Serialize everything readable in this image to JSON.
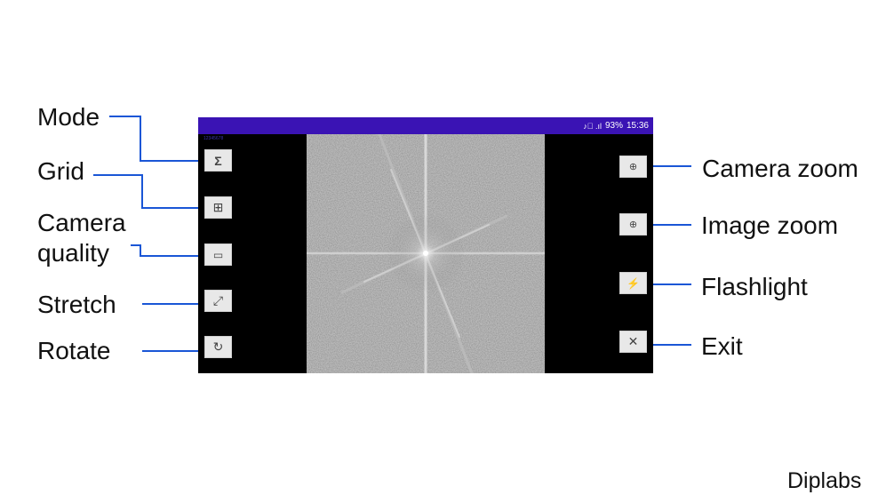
{
  "status_bar": {
    "signal": "♪⃠ .ıl",
    "battery": "93%",
    "time": "15:36"
  },
  "preview_tag": "12345678",
  "left_labels": {
    "mode": "Mode",
    "grid": "Grid",
    "camera_quality_line1": "Camera",
    "camera_quality_line2": "quality",
    "stretch": "Stretch",
    "rotate": "Rotate"
  },
  "right_labels": {
    "camera_zoom": "Camera zoom",
    "image_zoom": "Image zoom",
    "flashlight": "Flashlight",
    "exit": "Exit"
  },
  "buttons": {
    "mode": "Σ",
    "grid": "⊞",
    "camera_quality": "▭",
    "stretch": "⤢",
    "rotate": "↻",
    "camera_zoom": "⊕",
    "image_zoom": "⊕",
    "flashlight": "⚡",
    "exit": "✕"
  },
  "icons": {
    "mode": "sigma-icon",
    "grid": "grid-icon",
    "camera_quality": "camera-quality-icon",
    "stretch": "stretch-arrows-icon",
    "rotate": "rotate-icon",
    "camera_zoom": "zoom-icon",
    "image_zoom": "zoom-icon",
    "flashlight": "flashlight-icon",
    "exit": "close-icon"
  },
  "colors": {
    "status_bar": "#3a13b4",
    "connector": "#1a56d6",
    "button_bg": "#e8e8e8"
  },
  "footer": "Diplabs"
}
